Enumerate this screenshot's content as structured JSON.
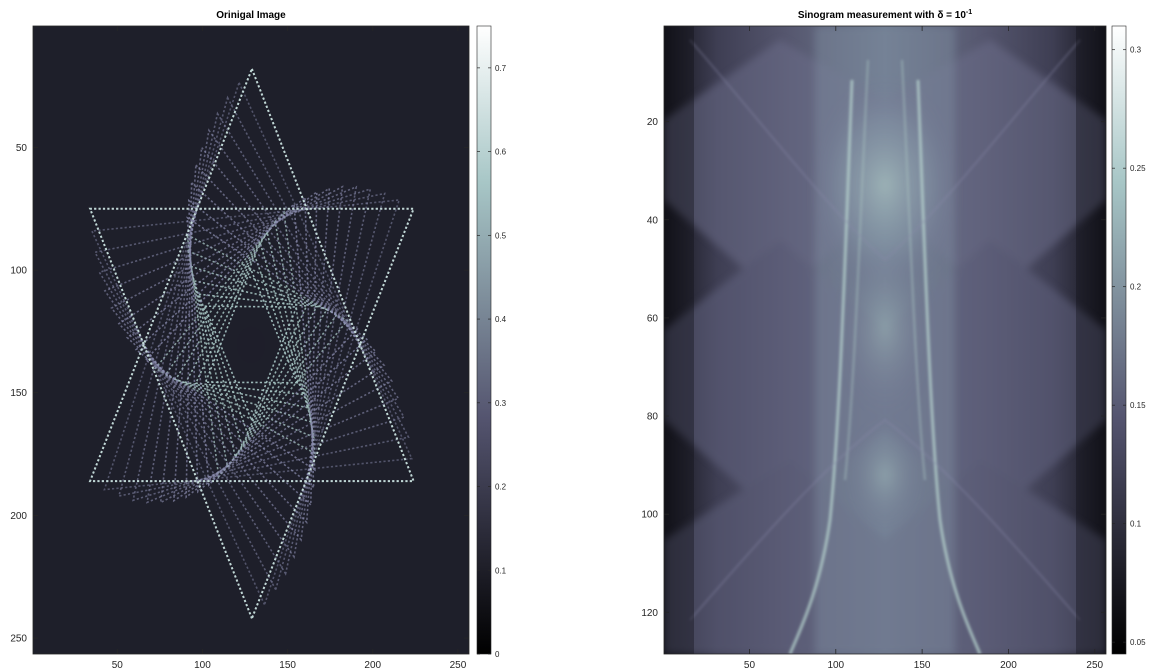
{
  "chart_data": [
    {
      "type": "heatmap",
      "title": "Orinigal Image",
      "xlabel": "",
      "ylabel": "",
      "xlim": [
        1,
        256
      ],
      "ylim": [
        256,
        1
      ],
      "xticks": [
        50,
        100,
        150,
        200,
        250
      ],
      "yticks": [
        50,
        100,
        150,
        200,
        250
      ],
      "colormap": "bone",
      "background_color": "#1e1f2a",
      "colorbar": {
        "range": [
          0,
          0.75
        ],
        "ticks": [
          0,
          0.1,
          0.2,
          0.3,
          0.4,
          0.5,
          0.6,
          0.7
        ]
      },
      "content": "spiral of rotated dotted triangles forming a six-pointed star"
    },
    {
      "type": "heatmap",
      "title": "Sinogram measurement with δ = 10",
      "title_superscript": "-1",
      "xlabel": "",
      "ylabel": "",
      "xlim": [
        1,
        256
      ],
      "ylim": [
        128,
        1
      ],
      "xticks": [
        50,
        100,
        150,
        200,
        250
      ],
      "yticks": [
        20,
        40,
        60,
        80,
        100,
        120
      ],
      "colormap": "bone",
      "colorbar": {
        "range": [
          0.045,
          0.31
        ],
        "ticks": [
          0.05,
          0.1,
          0.15,
          0.2,
          0.25,
          0.3
        ]
      },
      "content": "sinogram of the star image"
    }
  ]
}
